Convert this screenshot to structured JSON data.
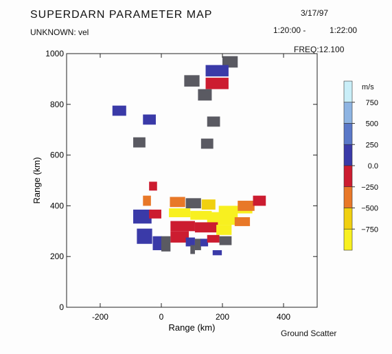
{
  "header": {
    "title": "SUPERDARN PARAMETER MAP",
    "subtitle": "UNKNOWN: vel",
    "date": "3/17/97",
    "time_start": "1:20:00 -",
    "time_end": "1:22:00",
    "frequency": "FREQ:12.100"
  },
  "footer": {
    "ground_scatter_label": "Ground Scatter"
  },
  "colors": {
    "ground_scatter": "#5a5a62",
    "v_pos_750": "#c9eef8",
    "v_500_750": "#8eb4e2",
    "v_250_500": "#5a78c8",
    "v_0_250": "#3a3aa8",
    "v_0_neg250": "#cc1c30",
    "v_neg250_neg500": "#e87828",
    "v_neg500_neg750": "#f0d010",
    "v_neg750": "#f8f020"
  },
  "chart_data": {
    "type": "heatmap",
    "title": "SUPERDARN PARAMETER MAP",
    "xlabel": "Range (km)",
    "ylabel": "Range (km)",
    "xlim": [
      -310,
      510
    ],
    "ylim": [
      0,
      1000
    ],
    "x_ticks": [
      -200,
      0,
      200,
      400
    ],
    "y_ticks": [
      0,
      200,
      400,
      600,
      800,
      1000
    ],
    "grid": false,
    "colorbar": {
      "unit": "m/s",
      "tick_labels": [
        "750",
        "500",
        "250",
        "0.0",
        "−250",
        "−500",
        "−750"
      ],
      "bins": [
        {
          "range": [
            750,
            1000
          ],
          "color": "#c9eef8"
        },
        {
          "range": [
            500,
            750
          ],
          "color": "#8eb4e2"
        },
        {
          "range": [
            250,
            500
          ],
          "color": "#5a78c8"
        },
        {
          "range": [
            0,
            250
          ],
          "color": "#3a3aa8"
        },
        {
          "range": [
            -250,
            0
          ],
          "color": "#cc1c30"
        },
        {
          "range": [
            -500,
            -250
          ],
          "color": "#e87828"
        },
        {
          "range": [
            -750,
            -500
          ],
          "color": "#f0d010"
        },
        {
          "range": [
            -1000,
            -750
          ],
          "color": "#f8f020"
        }
      ]
    },
    "cells": [
      {
        "x": 200,
        "y": 945,
        "w": 50,
        "h": 45,
        "c": "ground_scatter"
      },
      {
        "x": 145,
        "y": 910,
        "w": 75,
        "h": 45,
        "c": "v_0_250"
      },
      {
        "x": 75,
        "y": 870,
        "w": 50,
        "h": 45,
        "c": "ground_scatter"
      },
      {
        "x": 145,
        "y": 860,
        "w": 75,
        "h": 45,
        "c": "v_0_neg250"
      },
      {
        "x": 120,
        "y": 815,
        "w": 45,
        "h": 45,
        "c": "ground_scatter"
      },
      {
        "x": -160,
        "y": 755,
        "w": 45,
        "h": 40,
        "c": "v_0_250"
      },
      {
        "x": -60,
        "y": 720,
        "w": 42,
        "h": 40,
        "c": "v_0_250"
      },
      {
        "x": 150,
        "y": 712,
        "w": 42,
        "h": 40,
        "c": "ground_scatter"
      },
      {
        "x": -92,
        "y": 630,
        "w": 40,
        "h": 40,
        "c": "ground_scatter"
      },
      {
        "x": 130,
        "y": 625,
        "w": 40,
        "h": 40,
        "c": "ground_scatter"
      },
      {
        "x": -40,
        "y": 460,
        "w": 26,
        "h": 35,
        "c": "v_0_neg250"
      },
      {
        "x": -60,
        "y": 400,
        "w": 26,
        "h": 40,
        "c": "v_neg250_neg500"
      },
      {
        "x": 28,
        "y": 395,
        "w": 50,
        "h": 40,
        "c": "v_neg250_neg500"
      },
      {
        "x": 80,
        "y": 390,
        "w": 50,
        "h": 40,
        "c": "ground_scatter"
      },
      {
        "x": 132,
        "y": 385,
        "w": 45,
        "h": 40,
        "c": "v_neg500_neg750"
      },
      {
        "x": 188,
        "y": 370,
        "w": 110,
        "h": 30,
        "c": "v_neg750"
      },
      {
        "x": 250,
        "y": 380,
        "w": 55,
        "h": 40,
        "c": "v_neg250_neg500"
      },
      {
        "x": 300,
        "y": 400,
        "w": 42,
        "h": 40,
        "c": "v_0_neg250"
      },
      {
        "x": -92,
        "y": 330,
        "w": 60,
        "h": 55,
        "c": "v_0_250"
      },
      {
        "x": -40,
        "y": 350,
        "w": 40,
        "h": 35,
        "c": "v_0_neg250"
      },
      {
        "x": 25,
        "y": 355,
        "w": 70,
        "h": 35,
        "c": "v_neg750"
      },
      {
        "x": 95,
        "y": 345,
        "w": 70,
        "h": 35,
        "c": "v_neg750"
      },
      {
        "x": 150,
        "y": 325,
        "w": 100,
        "h": 50,
        "c": "v_neg750"
      },
      {
        "x": 240,
        "y": 320,
        "w": 50,
        "h": 35,
        "c": "v_neg250_neg500"
      },
      {
        "x": 30,
        "y": 300,
        "w": 80,
        "h": 40,
        "c": "v_0_neg250"
      },
      {
        "x": 110,
        "y": 295,
        "w": 75,
        "h": 40,
        "c": "v_0_neg250"
      },
      {
        "x": 180,
        "y": 285,
        "w": 50,
        "h": 40,
        "c": "v_neg750"
      },
      {
        "x": -80,
        "y": 250,
        "w": 50,
        "h": 60,
        "c": "v_0_250"
      },
      {
        "x": -28,
        "y": 225,
        "w": 30,
        "h": 55,
        "c": "v_0_250"
      },
      {
        "x": 0,
        "y": 220,
        "w": 30,
        "h": 60,
        "c": "ground_scatter"
      },
      {
        "x": 30,
        "y": 255,
        "w": 60,
        "h": 45,
        "c": "v_0_neg250"
      },
      {
        "x": 80,
        "y": 240,
        "w": 30,
        "h": 35,
        "c": "v_0_250"
      },
      {
        "x": 110,
        "y": 225,
        "w": 20,
        "h": 45,
        "c": "ground_scatter"
      },
      {
        "x": 128,
        "y": 240,
        "w": 25,
        "h": 30,
        "c": "v_0_250"
      },
      {
        "x": 150,
        "y": 255,
        "w": 40,
        "h": 30,
        "c": "v_0_neg250"
      },
      {
        "x": 190,
        "y": 245,
        "w": 40,
        "h": 35,
        "c": "ground_scatter"
      },
      {
        "x": 95,
        "y": 210,
        "w": 15,
        "h": 35,
        "c": "ground_scatter"
      },
      {
        "x": 168,
        "y": 205,
        "w": 30,
        "h": 20,
        "c": "v_0_250"
      }
    ]
  }
}
